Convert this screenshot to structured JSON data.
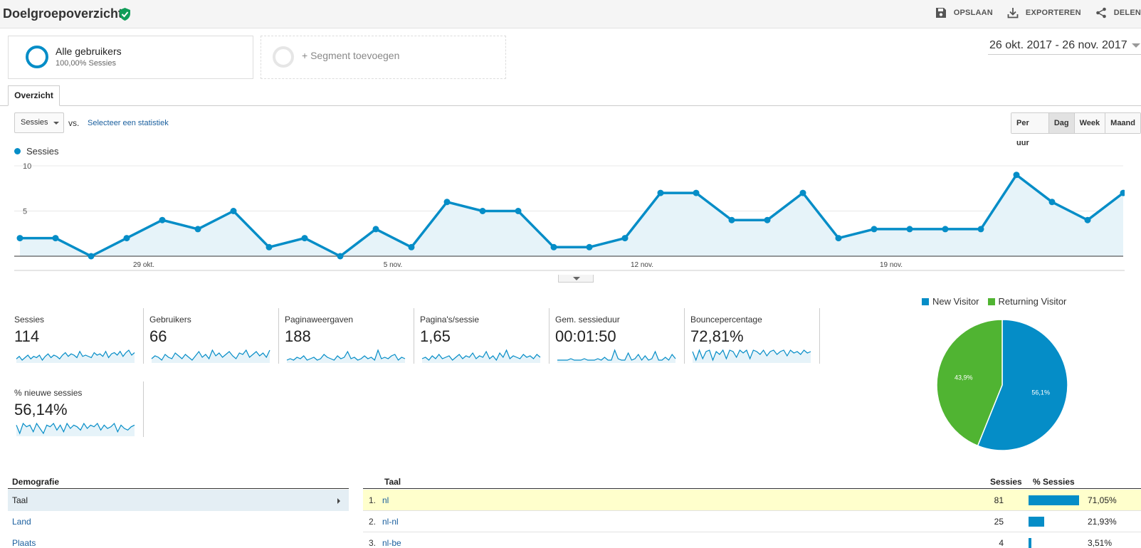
{
  "header": {
    "title": "Doelgroepoverzicht",
    "actions": [
      {
        "label": "OPSLAAN",
        "icon": "save-icon"
      },
      {
        "label": "EXPORTEREN",
        "icon": "export-icon"
      },
      {
        "label": "DELEN",
        "icon": "share-icon"
      }
    ]
  },
  "segments": {
    "all_users_title": "Alle gebruikers",
    "all_users_sub": "100,00% Sessies",
    "add_label": "+ Segment toevoegen"
  },
  "date_range": "26 okt. 2017 - 26 nov. 2017",
  "tabs": {
    "overview": "Overzicht"
  },
  "controls": {
    "metric_select": "Sessies",
    "vs": "vs.",
    "compare_link": "Selecteer een statistiek",
    "granularity": [
      "Per uur",
      "Dag",
      "Week",
      "Maand"
    ],
    "granularity_active": "Dag"
  },
  "colors": {
    "accent": "#058dc7",
    "returning": "#50b432",
    "highlight_row": "#ffffcc"
  },
  "chart_data": {
    "type": "area",
    "series": [
      {
        "name": "Sessies",
        "values": [
          2,
          2,
          0,
          2,
          4,
          3,
          5,
          1,
          2,
          0,
          3,
          1,
          6,
          5,
          5,
          1,
          1,
          2,
          7,
          7,
          4,
          4,
          7,
          2,
          3,
          3,
          3,
          3,
          9,
          6,
          4,
          7
        ]
      }
    ],
    "x_tick_labels": [
      "29 okt.",
      "5 nov.",
      "12 nov.",
      "19 nov."
    ],
    "x_tick_index": [
      3,
      10,
      17,
      24
    ],
    "y_tick_labels": [
      "10",
      "5"
    ],
    "ylim": [
      0,
      10
    ],
    "grid": true,
    "legend_placement": "top-left"
  },
  "metrics": [
    {
      "label": "Sessies",
      "value": "114",
      "spark": [
        3,
        5,
        2,
        4,
        6,
        3,
        5,
        4,
        6,
        2,
        5,
        7,
        4,
        6,
        5,
        3,
        6,
        8,
        5,
        7,
        6,
        4,
        9,
        5,
        6,
        5,
        4,
        8,
        6,
        7,
        5,
        9,
        4,
        7,
        8,
        6,
        9,
        5,
        8,
        10,
        6,
        8
      ]
    },
    {
      "label": "Gebruikers",
      "value": "66",
      "spark": [
        3,
        5,
        4,
        2,
        6,
        4,
        3,
        7,
        5,
        3,
        6,
        4,
        2,
        5,
        8,
        4,
        6,
        3,
        9,
        5,
        7,
        4,
        6,
        8,
        5,
        3,
        7,
        6,
        9,
        4,
        6,
        8,
        5,
        7,
        4,
        9
      ]
    },
    {
      "label": "Paginaweergaven",
      "value": "188",
      "spark": [
        2,
        3,
        2,
        4,
        3,
        5,
        2,
        3,
        4,
        2,
        3,
        6,
        4,
        3,
        2,
        5,
        3,
        4,
        8,
        3,
        4,
        2,
        3,
        5,
        3,
        4,
        2,
        9,
        3,
        4,
        3,
        5,
        6,
        2,
        4,
        3
      ]
    },
    {
      "label": "Pagina's/sessie",
      "value": "1,65",
      "spark": [
        3,
        4,
        2,
        5,
        3,
        6,
        3,
        4,
        5,
        2,
        4,
        6,
        3,
        5,
        4,
        7,
        3,
        5,
        4,
        8,
        3,
        5,
        2,
        7,
        4,
        9,
        3,
        5,
        4,
        3,
        6,
        4,
        5,
        3,
        6,
        4
      ]
    },
    {
      "label": "Gem. sessieduur",
      "value": "00:01:50",
      "spark": [
        1,
        1,
        1,
        1,
        2,
        1,
        1,
        1,
        2,
        1,
        1,
        1,
        2,
        1,
        3,
        1,
        1,
        8,
        2,
        1,
        1,
        6,
        1,
        2,
        5,
        1,
        4,
        1,
        2,
        7,
        1,
        1,
        3,
        1,
        5,
        2
      ]
    },
    {
      "label": "Bouncepercentage",
      "value": "72,81%",
      "spark": [
        8,
        2,
        9,
        3,
        8,
        9,
        2,
        8,
        6,
        9,
        3,
        9,
        8,
        4,
        9,
        7,
        9,
        3,
        9,
        8,
        6,
        9,
        5,
        8,
        9,
        6,
        8,
        9,
        5,
        9,
        7,
        8,
        6,
        9,
        7,
        8
      ]
    },
    {
      "label": "% nieuwe sessies",
      "value": "56,14%",
      "spark": [
        8,
        3,
        9,
        7,
        8,
        4,
        9,
        6,
        3,
        8,
        7,
        9,
        5,
        8,
        4,
        9,
        6,
        8,
        7,
        5,
        9,
        6,
        8,
        7,
        9,
        5,
        8,
        6,
        7,
        9,
        4,
        8,
        6,
        5,
        7,
        8
      ]
    }
  ],
  "pie": {
    "legend": [
      {
        "name": "New Visitor",
        "color": "#058dc7"
      },
      {
        "name": "Returning Visitor",
        "color": "#50b432"
      }
    ],
    "slices": [
      {
        "name": "New Visitor",
        "value": 56.1,
        "label": "56,1%"
      },
      {
        "name": "Returning Visitor",
        "value": 43.9,
        "label": "43,9%"
      }
    ]
  },
  "demographics": {
    "title": "Demografie",
    "items": [
      "Taal",
      "Land",
      "Plaats"
    ],
    "selected": "Taal"
  },
  "table": {
    "col_language": "Taal",
    "col_sessions": "Sessies",
    "col_pct": "% Sessies",
    "rows": [
      {
        "idx": "1.",
        "lang": "nl",
        "sessions": "81",
        "pct": "71,05%",
        "pct_value": 71.05
      },
      {
        "idx": "2.",
        "lang": "nl-nl",
        "sessions": "25",
        "pct": "21,93%",
        "pct_value": 21.93
      },
      {
        "idx": "3.",
        "lang": "nl-be",
        "sessions": "4",
        "pct": "3,51%",
        "pct_value": 3.51
      }
    ]
  }
}
